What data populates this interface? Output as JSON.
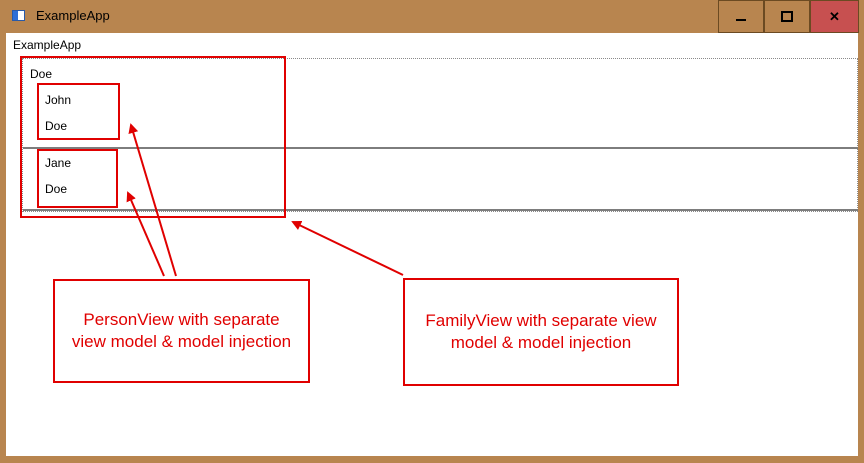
{
  "window": {
    "title": "ExampleApp",
    "minimize_icon": "minimize-icon",
    "maximize_icon": "maximize-icon",
    "close_icon": "close-icon",
    "close_color": "#c75050"
  },
  "content": {
    "caption": "ExampleApp",
    "family": {
      "last_name": "Doe",
      "members": [
        {
          "first_name": "John",
          "last_name": "Doe"
        },
        {
          "first_name": "Jane",
          "last_name": "Doe"
        }
      ]
    }
  },
  "annotations": {
    "person_view": "PersonView with separate view model & model injection",
    "family_view": "FamilyView with separate view model & model injection",
    "color": "#e00000"
  }
}
